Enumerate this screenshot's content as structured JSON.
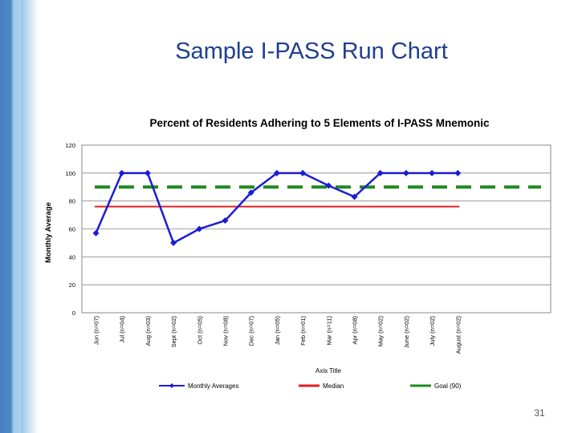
{
  "slide": {
    "title": "Sample I-PASS Run Chart",
    "number": "31",
    "accent_color": "#1f3f8f"
  },
  "chart_data": {
    "type": "line",
    "title": "Percent of Residents Adhering to 5 Elements of I-PASS Mnemonic",
    "ylabel": "Monthly Average",
    "xlabel": "Axis Title",
    "ylim": [
      0,
      120
    ],
    "yticks": [
      0,
      20,
      40,
      60,
      80,
      100,
      120
    ],
    "grid": true,
    "legend_position": "bottom",
    "categories": [
      "Jun (n=07)",
      "Jul (n=04)",
      "Aug (n=03)",
      "Sept (n=02)",
      "Oct (n=05)",
      "Nov (n=08)",
      "Dec (n=07)",
      "Jan (n=05)",
      "Feb (n=01)",
      "Mar (n=11)",
      "Apr (n=08)",
      "May (n=02)",
      "June (n=02)",
      "July (n=02)",
      "August (n=02)"
    ],
    "series": [
      {
        "name": "Monthly Averages",
        "kind": "line-marker",
        "color": "#1c1cd6",
        "values": [
          57,
          100,
          100,
          50,
          60,
          66,
          86,
          100,
          100,
          91,
          83,
          100,
          100,
          100,
          100
        ]
      },
      {
        "name": "Median",
        "kind": "reference",
        "color": "#e02020",
        "value": 76
      },
      {
        "name": "Goal (90)",
        "kind": "reference-dashed",
        "color": "#1f8a1f",
        "value": 90
      }
    ]
  }
}
